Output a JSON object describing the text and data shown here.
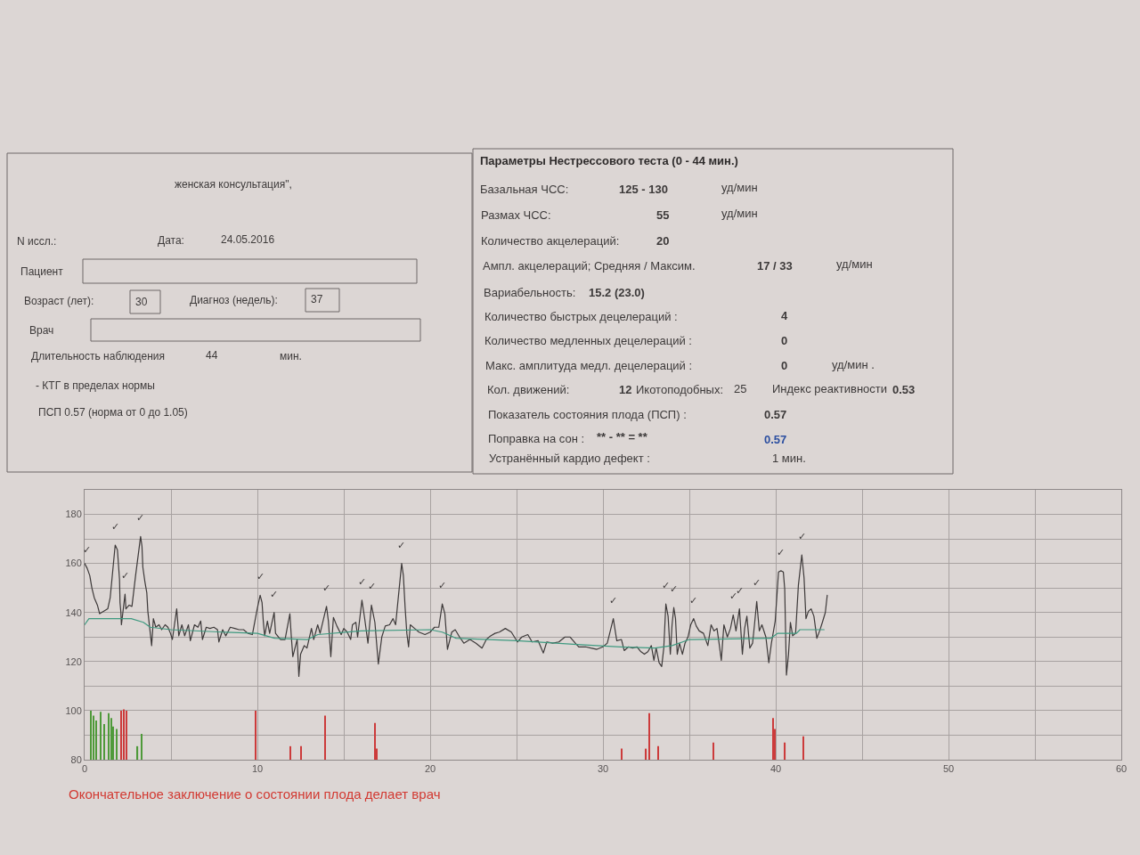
{
  "chart_data": [
    {
      "type": "other",
      "annotations": [
        "женская консультация\",",
        "N иссл.:",
        "Дата:",
        "24.05.2016",
        "Пациент",
        "Возраст (лет):",
        "30",
        "Диагноз (недель):",
        "37",
        "Врач",
        "Длительность наблюдения",
        "44",
        "мин.",
        "- КТГ в пределах нормы",
        "ПСП 0.57 (норма от 0 до 1.05)"
      ]
    },
    {
      "type": "other",
      "title": "Параметры Нестрессового теста (0 - 44 мин.)",
      "annotations": [
        "Базальная ЧСС:",
        "125 - 130",
        "уд/мин",
        "Размах ЧСС:",
        "55",
        "уд/мин",
        "Количество акцелераций:",
        "20",
        "Ампл. акцелераций; Средняя / Максим.",
        "17 / 33",
        "уд/мин",
        "Вариабельность:",
        "15.2 (23.0)",
        "Количество быстрых децелераций :",
        "4",
        "Количество медленных децелераций :",
        "0",
        "Макс. амплитуда медл. децелераций :",
        "0",
        "уд/мин .",
        "Кол. движений:",
        "12",
        "Икотоподобных:",
        "25",
        "Индекс реактивности",
        "0.53",
        "Показатель состояния плода (ПСП) :",
        "0.57",
        "Поправка на сон :",
        "** - ** = **",
        "0.57",
        "Устранённый кардио дефект :",
        "1 мин."
      ]
    },
    {
      "type": "line",
      "xlim": [
        0,
        60
      ],
      "xticks": [
        0,
        {
          "value": 5,
          "label": null
        },
        10,
        {
          "value": 15,
          "label": null
        },
        20,
        {
          "value": 25,
          "label": null
        },
        30,
        {
          "value": 35,
          "label": null
        },
        40,
        {
          "value": 45,
          "label": null
        },
        50,
        {
          "value": 55,
          "label": null
        },
        60
      ],
      "ylim": [
        80,
        190
      ],
      "yticks": [
        80,
        {
          "value": 90,
          "label": null
        },
        100,
        {
          "value": 110,
          "label": null
        },
        120,
        {
          "value": 130,
          "label": null
        },
        140,
        {
          "value": 150,
          "label": null
        },
        160,
        {
          "value": 170,
          "label": null
        },
        180,
        {
          "value": 190,
          "label": null
        }
      ],
      "grid": true,
      "series": [
        {
          "color": "#3d3939",
          "x": [
            0.0,
            0.15,
            0.3,
            0.42,
            0.56,
            0.74,
            0.87,
            1.11,
            1.34,
            1.48,
            1.77,
            1.9,
            1.96,
            2.02,
            2.05,
            2.1,
            2.13,
            2.34,
            2.39,
            2.58,
            2.74,
            2.95,
            3.24,
            3.32,
            3.37,
            3.49,
            3.6,
            3.66,
            3.88,
            3.98,
            4.12,
            4.31,
            4.46,
            4.66,
            4.82,
            4.97,
            5.08,
            5.33,
            5.45,
            5.63,
            5.79,
            6.01,
            6.12,
            6.36,
            6.56,
            6.72,
            6.82,
            7.04,
            7.25,
            7.48,
            7.69,
            7.77,
            7.99,
            8.17,
            8.43,
            8.69,
            8.94,
            9.2,
            9.45,
            9.71,
            9.99,
            10.16,
            10.27,
            10.34,
            10.42,
            10.58,
            10.71,
            10.97,
            11.05,
            11.34,
            11.6,
            11.88,
            11.96,
            12.05,
            12.3,
            12.4,
            12.5,
            12.71,
            12.87,
            13.13,
            13.26,
            13.49,
            13.63,
            14.0,
            14.11,
            14.25,
            14.4,
            14.6,
            14.85,
            15.0,
            15.2,
            15.4,
            15.5,
            15.7,
            15.8,
            16.05,
            16.2,
            16.4,
            16.6,
            16.8,
            17.0,
            17.2,
            17.4,
            17.65,
            17.85,
            18.0,
            18.35,
            18.45,
            18.55,
            18.65,
            18.75,
            18.85,
            19.1,
            19.35,
            19.7,
            20.0,
            20.25,
            20.5,
            20.7,
            20.85,
            21.0,
            21.25,
            21.45,
            21.7,
            21.95,
            22.3,
            22.65,
            23.0,
            23.25,
            23.5,
            23.75,
            24.0,
            24.35,
            24.7,
            25.05,
            25.3,
            25.65,
            25.9,
            26.25,
            26.55,
            26.75,
            27.1,
            27.45,
            27.8,
            28.1,
            28.4,
            28.6,
            29.0,
            29.3,
            29.65,
            30.0,
            30.25,
            30.6,
            30.8,
            31.07,
            31.23,
            31.48,
            31.72,
            31.97,
            32.2,
            32.4,
            32.6,
            32.8,
            32.95,
            33.08,
            33.25,
            33.4,
            33.52,
            33.64,
            33.77,
            33.9,
            34.0,
            34.1,
            34.2,
            34.3,
            34.43,
            34.6,
            34.75,
            34.92,
            35.08,
            35.25,
            35.4,
            35.57,
            35.82,
            36.07,
            36.26,
            36.43,
            36.6,
            36.72,
            36.85,
            37.0,
            37.2,
            37.38,
            37.54,
            37.7,
            37.9,
            38.07,
            38.2,
            38.33,
            38.5,
            38.66,
            38.77,
            38.9,
            39.05,
            39.2,
            39.43,
            39.6,
            39.75,
            39.97,
            40.16,
            40.3,
            40.44,
            40.52,
            40.62,
            40.74,
            40.85,
            40.98,
            41.15,
            41.31,
            41.51,
            41.64,
            41.75,
            41.89,
            42.05,
            42.21,
            42.38,
            42.54,
            42.7,
            42.87,
            42.98
          ],
          "values": [
            160,
            158,
            155,
            150,
            146,
            143,
            139.5,
            140.5,
            141.5,
            146,
            167.5,
            165.5,
            159.5,
            153.5,
            144,
            140,
            135,
            147.5,
            141.5,
            143,
            142.5,
            155,
            171,
            167,
            158.5,
            152.5,
            148,
            140.5,
            126.5,
            137.5,
            134,
            135,
            133,
            135,
            134,
            131.5,
            129,
            141.5,
            130.5,
            135,
            130.5,
            135,
            128.5,
            135,
            134,
            136.5,
            129,
            134,
            133.5,
            134,
            133,
            128,
            133,
            130.5,
            134,
            133.5,
            133,
            133,
            131.5,
            131,
            141.5,
            147,
            144,
            136.5,
            130.5,
            136.5,
            131.5,
            140,
            131.5,
            129,
            129,
            139.5,
            130.5,
            122,
            129,
            114,
            123,
            126.5,
            125.5,
            133.5,
            129,
            135,
            131.5,
            142.5,
            136.5,
            122,
            138,
            134.5,
            131,
            133.5,
            132,
            129,
            135,
            136,
            130,
            145,
            138,
            127.5,
            143,
            136,
            119,
            130,
            134.5,
            135,
            137.5,
            135,
            160,
            155,
            142,
            131.5,
            126,
            135,
            133.5,
            132,
            131,
            132,
            134,
            134,
            143.5,
            139.5,
            125,
            132,
            133,
            130,
            127.5,
            129,
            127.5,
            125.5,
            129,
            130.5,
            131.5,
            132,
            133.5,
            132,
            128,
            130,
            131,
            128,
            128.5,
            123.5,
            128,
            127.5,
            128,
            130,
            130,
            127.5,
            126,
            126,
            125.5,
            125,
            126,
            127.5,
            137.5,
            128.5,
            129,
            124.5,
            126,
            125.5,
            126,
            124,
            123,
            124,
            126.5,
            120.5,
            125.5,
            119.5,
            118,
            125.5,
            143.5,
            138.5,
            123,
            135,
            142,
            137.5,
            123,
            127.5,
            123,
            127.5,
            130,
            135,
            137.5,
            134.5,
            132.5,
            131.5,
            126.5,
            135,
            132.5,
            133.5,
            127.5,
            120.5,
            135,
            130,
            133.5,
            139,
            132.5,
            141.5,
            123,
            133.5,
            138.5,
            125.5,
            127.5,
            135,
            144.5,
            132.5,
            135,
            130,
            119.5,
            127.5,
            136.5,
            156.5,
            157,
            156.5,
            149.5,
            114.5,
            123,
            136,
            130.5,
            131.5,
            151,
            163.5,
            154,
            137.5,
            140.5,
            141.5,
            138.5,
            129.5,
            132.5,
            136,
            140,
            147
          ]
        },
        {
          "color": "#3f9a80",
          "x": [
            0.0,
            0.25,
            2.7,
            3.4,
            3.8,
            5.0,
            8.0,
            10.0,
            11.0,
            12.9,
            13.5,
            16.0,
            20.0,
            20.7,
            21.5,
            25.0,
            28.5,
            31.0,
            33.0,
            34.0,
            35.0,
            39.7,
            40.1,
            41.2,
            41.4,
            42.8
          ],
          "values": [
            135,
            137.5,
            137.5,
            136,
            134,
            133,
            132,
            131.5,
            129.5,
            129,
            131,
            132.5,
            133,
            132,
            129.5,
            128.5,
            127,
            126,
            125.5,
            126.5,
            129,
            129.5,
            131.5,
            131.5,
            133,
            133
          ]
        },
        {
          "type": "bar",
          "color": "#4f9a3a",
          "x": [
            0.35,
            0.53,
            0.67,
            0.91,
            1.14,
            1.4,
            1.54,
            1.67,
            1.84,
            3.07,
            3.28
          ],
          "base": [
            80,
            80,
            80,
            80,
            80,
            80,
            80,
            80,
            80,
            80,
            80
          ],
          "values": [
            20,
            18,
            16,
            19.5,
            14.5,
            19,
            17,
            13.5,
            12.5,
            5.5,
            10.5
          ]
        },
        {
          "type": "bar",
          "color": "#cc3b3b",
          "x": [
            2.1,
            2.28,
            2.42,
            9.91,
            11.93,
            12.54,
            13.9,
            16.8,
            16.9,
            31.1,
            32.5,
            32.7,
            33.2,
            36.4,
            39.83,
            39.93,
            40.54,
            41.58
          ],
          "base": [
            80,
            80,
            80,
            80,
            80,
            80,
            80,
            80,
            80,
            80,
            80,
            80,
            80,
            80,
            80,
            80,
            80,
            80
          ],
          "values": [
            20,
            20.5,
            20,
            20,
            5.5,
            5.5,
            18,
            15,
            4.5,
            4.5,
            4.5,
            19,
            5.5,
            7,
            17,
            12.5,
            7,
            9.5
          ]
        }
      ],
      "annotations": [
        {
          "text": "✓",
          "x": 0.15,
          "y": 158
        },
        {
          "text": "✓",
          "x": 1.77,
          "y": 167.5
        },
        {
          "text": "✓",
          "x": 2.34,
          "y": 147.5
        },
        {
          "text": "✓",
          "x": 3.24,
          "y": 171
        },
        {
          "text": "✓",
          "x": 10.16,
          "y": 147
        },
        {
          "text": "✓",
          "x": 10.97,
          "y": 140
        },
        {
          "text": "✓",
          "x": 14.0,
          "y": 142.5
        },
        {
          "text": "✓",
          "x": 16.05,
          "y": 145
        },
        {
          "text": "✓",
          "x": 16.6,
          "y": 143
        },
        {
          "text": "✓",
          "x": 18.35,
          "y": 160
        },
        {
          "text": "✓",
          "x": 20.7,
          "y": 143.5
        },
        {
          "text": "✓",
          "x": 30.6,
          "y": 137.5
        },
        {
          "text": "✓",
          "x": 33.64,
          "y": 143.5
        },
        {
          "text": "✓",
          "x": 34.1,
          "y": 142
        },
        {
          "text": "✓",
          "x": 35.25,
          "y": 137.5
        },
        {
          "text": "✓",
          "x": 37.54,
          "y": 139
        },
        {
          "text": "✓",
          "x": 37.9,
          "y": 141.5
        },
        {
          "text": "✓",
          "x": 38.9,
          "y": 144.5
        },
        {
          "text": "✓",
          "x": 40.3,
          "y": 157
        },
        {
          "text": "✓",
          "x": 41.51,
          "y": 163.5
        },
        "Окончательное заключение о состоянии плода делает врач"
      ]
    }
  ]
}
